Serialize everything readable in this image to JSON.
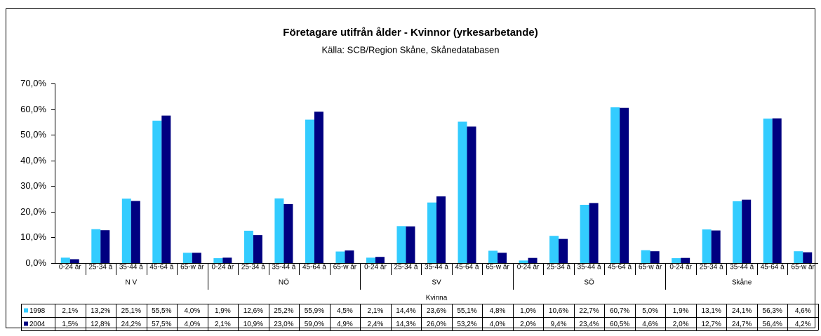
{
  "chart_data": {
    "type": "bar",
    "title": "Företagare utifrån ålder - Kvinnor (yrkesarbetande)",
    "subtitle": "Källa: SCB/Region Skåne, Skånedatabasen",
    "categories": [
      "0-24 år",
      "25-34 å",
      "35-44 å",
      "45-64 å",
      "65-w år",
      "0-24 år",
      "25-34 å",
      "35-44 å",
      "45-64 å",
      "65-w år",
      "0-24 år",
      "25-34 å",
      "35-44 å",
      "45-64 å",
      "65-w år",
      "0-24 år",
      "25-34 å",
      "35-44 å",
      "45-64 å",
      "65-w år",
      "0-24 år",
      "25-34 å",
      "35-44 å",
      "45-64 å",
      "65-w år"
    ],
    "groups": [
      "N V",
      "NÖ",
      "SV",
      "SÖ",
      "Skåne"
    ],
    "group_axis_label": "Kvinna",
    "series": [
      {
        "name": "1998",
        "color": "#33ccff",
        "values": [
          2.1,
          13.2,
          25.1,
          55.5,
          4.0,
          1.9,
          12.6,
          25.2,
          55.9,
          4.5,
          2.1,
          14.4,
          23.6,
          55.1,
          4.8,
          1.0,
          10.6,
          22.7,
          60.7,
          5.0,
          1.9,
          13.1,
          24.1,
          56.3,
          4.6
        ],
        "value_labels": [
          "2,1%",
          "13,2%",
          "25,1%",
          "55,5%",
          "4,0%",
          "1,9%",
          "12,6%",
          "25,2%",
          "55,9%",
          "4,5%",
          "2,1%",
          "14,4%",
          "23,6%",
          "55,1%",
          "4,8%",
          "1,0%",
          "10,6%",
          "22,7%",
          "60,7%",
          "5,0%",
          "1,9%",
          "13,1%",
          "24,1%",
          "56,3%",
          "4,6%"
        ]
      },
      {
        "name": "2004",
        "color": "#000080",
        "values": [
          1.5,
          12.8,
          24.2,
          57.5,
          4.0,
          2.1,
          10.9,
          23.0,
          59.0,
          4.9,
          2.4,
          14.3,
          26.0,
          53.2,
          4.0,
          2.0,
          9.4,
          23.4,
          60.5,
          4.6,
          2.0,
          12.7,
          24.7,
          56.4,
          4.2
        ],
        "value_labels": [
          "1,5%",
          "12,8%",
          "24,2%",
          "57,5%",
          "4,0%",
          "2,1%",
          "10,9%",
          "23,0%",
          "59,0%",
          "4,9%",
          "2,4%",
          "14,3%",
          "26,0%",
          "53,2%",
          "4,0%",
          "2,0%",
          "9,4%",
          "23,4%",
          "60,5%",
          "4,6%",
          "2,0%",
          "12,7%",
          "24,7%",
          "56,4%",
          "4,2%"
        ]
      }
    ],
    "ylim": [
      0,
      70
    ],
    "yticks": [
      {
        "value": 0,
        "label": "0,0%"
      },
      {
        "value": 10,
        "label": "10,0%"
      },
      {
        "value": 20,
        "label": "20,0%"
      },
      {
        "value": 30,
        "label": "30,0%"
      },
      {
        "value": 40,
        "label": "40,0%"
      },
      {
        "value": 50,
        "label": "50,0%"
      },
      {
        "value": 60,
        "label": "60,0%"
      },
      {
        "value": 70,
        "label": "70,0%"
      }
    ],
    "grid": false
  }
}
